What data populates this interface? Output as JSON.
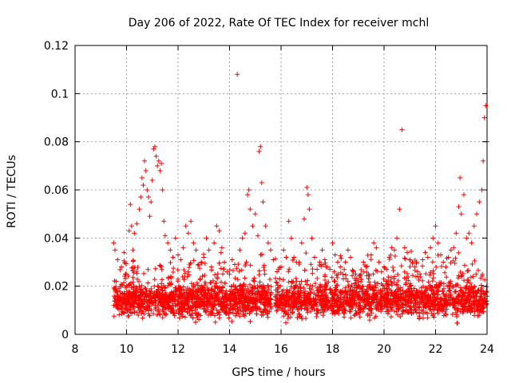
{
  "chart_data": {
    "type": "scatter",
    "title": "Day 206 of 2022, Rate Of TEC Index for receiver mchl",
    "xlabel": "GPS time / hours",
    "ylabel": "ROTI / TECUs",
    "xlim": [
      8,
      24
    ],
    "ylim": [
      0,
      0.12
    ],
    "x_ticks": [
      "8",
      "10",
      "12",
      "14",
      "16",
      "18",
      "20",
      "22",
      "24"
    ],
    "y_ticks": [
      "0",
      "0.02",
      "0.04",
      "0.06",
      "0.08",
      "0.1",
      "0.12"
    ],
    "grid": true,
    "marker": "+",
    "color": "#ff0000",
    "series": [
      {
        "name": "ROTI",
        "points": [
          [
            9.5,
            0.038
          ],
          [
            9.55,
            0.035
          ],
          [
            9.6,
            0.022
          ],
          [
            9.65,
            0.031
          ],
          [
            9.7,
            0.012
          ],
          [
            9.8,
            0.028
          ],
          [
            9.9,
            0.034
          ],
          [
            10.0,
            0.02
          ],
          [
            10.1,
            0.043
          ],
          [
            10.15,
            0.054
          ],
          [
            10.2,
            0.045
          ],
          [
            10.25,
            0.035
          ],
          [
            10.3,
            0.042
          ],
          [
            10.4,
            0.046
          ],
          [
            10.5,
            0.052
          ],
          [
            10.55,
            0.057
          ],
          [
            10.6,
            0.065
          ],
          [
            10.65,
            0.062
          ],
          [
            10.7,
            0.072
          ],
          [
            10.75,
            0.068
          ],
          [
            10.8,
            0.06
          ],
          [
            10.85,
            0.057
          ],
          [
            10.9,
            0.049
          ],
          [
            10.95,
            0.055
          ],
          [
            11.0,
            0.064
          ],
          [
            11.05,
            0.077
          ],
          [
            11.1,
            0.078
          ],
          [
            11.15,
            0.074
          ],
          [
            11.2,
            0.07
          ],
          [
            11.25,
            0.072
          ],
          [
            11.3,
            0.068
          ],
          [
            11.35,
            0.071
          ],
          [
            11.4,
            0.06
          ],
          [
            11.45,
            0.047
          ],
          [
            11.5,
            0.041
          ],
          [
            11.6,
            0.038
          ],
          [
            11.7,
            0.035
          ],
          [
            11.8,
            0.032
          ],
          [
            11.9,
            0.04
          ],
          [
            12.0,
            0.033
          ],
          [
            12.1,
            0.031
          ],
          [
            12.2,
            0.036
          ],
          [
            12.3,
            0.045
          ],
          [
            12.4,
            0.042
          ],
          [
            12.5,
            0.047
          ],
          [
            12.6,
            0.038
          ],
          [
            12.7,
            0.035
          ],
          [
            12.8,
            0.029
          ],
          [
            12.9,
            0.03
          ],
          [
            13.0,
            0.032
          ],
          [
            13.1,
            0.04
          ],
          [
            13.2,
            0.035
          ],
          [
            13.3,
            0.028
          ],
          [
            13.4,
            0.038
          ],
          [
            13.5,
            0.045
          ],
          [
            13.6,
            0.043
          ],
          [
            13.7,
            0.036
          ],
          [
            13.8,
            0.03
          ],
          [
            13.9,
            0.026
          ],
          [
            14.0,
            0.025
          ],
          [
            14.1,
            0.031
          ],
          [
            14.2,
            0.029
          ],
          [
            14.3,
            0.108
          ],
          [
            14.4,
            0.035
          ],
          [
            14.5,
            0.04
          ],
          [
            14.6,
            0.042
          ],
          [
            14.7,
            0.058
          ],
          [
            14.75,
            0.06
          ],
          [
            14.8,
            0.052
          ],
          [
            14.9,
            0.045
          ],
          [
            15.0,
            0.05
          ],
          [
            15.1,
            0.041
          ],
          [
            15.15,
            0.076
          ],
          [
            15.2,
            0.078
          ],
          [
            15.25,
            0.063
          ],
          [
            15.3,
            0.055
          ],
          [
            15.4,
            0.045
          ],
          [
            15.5,
            0.038
          ],
          [
            15.6,
            0.035
          ],
          [
            15.7,
            0.031
          ],
          [
            15.9,
            0.027
          ],
          [
            16.0,
            0.028
          ],
          [
            16.1,
            0.035
          ],
          [
            16.2,
            0.032
          ],
          [
            16.3,
            0.047
          ],
          [
            16.4,
            0.04
          ],
          [
            16.5,
            0.032
          ],
          [
            16.6,
            0.03
          ],
          [
            16.7,
            0.03
          ],
          [
            16.8,
            0.038
          ],
          [
            16.9,
            0.048
          ],
          [
            17.0,
            0.061
          ],
          [
            17.05,
            0.058
          ],
          [
            17.1,
            0.052
          ],
          [
            17.2,
            0.04
          ],
          [
            17.3,
            0.032
          ],
          [
            17.4,
            0.027
          ],
          [
            17.5,
            0.03
          ],
          [
            17.6,
            0.035
          ],
          [
            17.7,
            0.031
          ],
          [
            17.8,
            0.028
          ],
          [
            17.9,
            0.027
          ],
          [
            18.0,
            0.038
          ],
          [
            18.1,
            0.033
          ],
          [
            18.2,
            0.03
          ],
          [
            18.3,
            0.028
          ],
          [
            18.4,
            0.025
          ],
          [
            18.5,
            0.03
          ],
          [
            18.6,
            0.035
          ],
          [
            18.7,
            0.032
          ],
          [
            18.8,
            0.026
          ],
          [
            18.9,
            0.025
          ],
          [
            19.0,
            0.022
          ],
          [
            19.1,
            0.025
          ],
          [
            19.2,
            0.03
          ],
          [
            19.3,
            0.028
          ],
          [
            19.4,
            0.025
          ],
          [
            19.5,
            0.033
          ],
          [
            19.6,
            0.038
          ],
          [
            19.7,
            0.036
          ],
          [
            19.8,
            0.03
          ],
          [
            19.9,
            0.026
          ],
          [
            20.0,
            0.028
          ],
          [
            20.1,
            0.027
          ],
          [
            20.2,
            0.032
          ],
          [
            20.3,
            0.036
          ],
          [
            20.4,
            0.035
          ],
          [
            20.5,
            0.04
          ],
          [
            20.6,
            0.052
          ],
          [
            20.7,
            0.085
          ],
          [
            20.8,
            0.036
          ],
          [
            20.9,
            0.034
          ],
          [
            21.0,
            0.031
          ],
          [
            21.1,
            0.03
          ],
          [
            21.2,
            0.028
          ],
          [
            21.3,
            0.026
          ],
          [
            21.4,
            0.025
          ],
          [
            21.5,
            0.031
          ],
          [
            21.6,
            0.034
          ],
          [
            21.7,
            0.032
          ],
          [
            21.8,
            0.036
          ],
          [
            21.9,
            0.04
          ],
          [
            22.0,
            0.045
          ],
          [
            22.1,
            0.038
          ],
          [
            22.2,
            0.033
          ],
          [
            22.3,
            0.03
          ],
          [
            22.4,
            0.028
          ],
          [
            22.5,
            0.032
          ],
          [
            22.6,
            0.035
          ],
          [
            22.7,
            0.036
          ],
          [
            22.8,
            0.042
          ],
          [
            22.9,
            0.053
          ],
          [
            22.95,
            0.065
          ],
          [
            23.0,
            0.05
          ],
          [
            23.1,
            0.058
          ],
          [
            23.2,
            0.04
          ],
          [
            23.3,
            0.042
          ],
          [
            23.4,
            0.038
          ],
          [
            23.5,
            0.045
          ],
          [
            23.6,
            0.05
          ],
          [
            23.7,
            0.055
          ],
          [
            23.8,
            0.06
          ],
          [
            23.85,
            0.072
          ],
          [
            23.9,
            0.09
          ],
          [
            23.95,
            0.095
          ],
          [
            24.0,
            0.08
          ]
        ],
        "bulk": {
          "x_start": 9.5,
          "x_end": 24.0,
          "count": 3200,
          "seed": 206,
          "baseline": 0.011,
          "spread": 0.008,
          "floor": 0.003,
          "x_gap": [
            15.62,
            15.78
          ]
        }
      }
    ]
  }
}
